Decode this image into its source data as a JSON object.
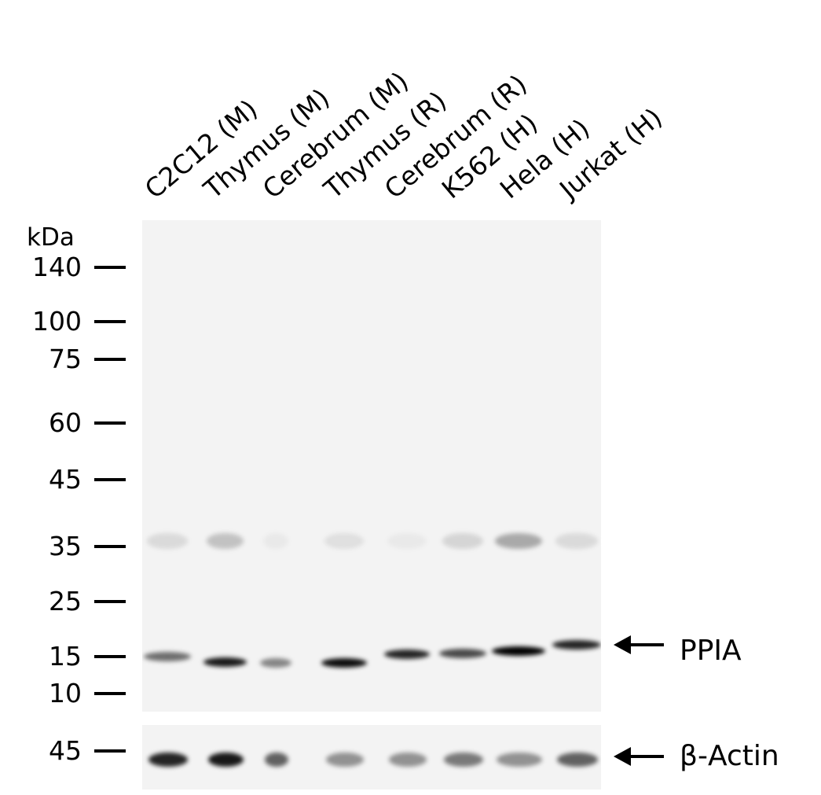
{
  "lanes": [
    "C2C12 (M)",
    "Thymus (M)",
    "Cerebrum (M)",
    "Thymus (R)",
    "Cerebrum (R)",
    "K562 (H)",
    "Hela (H)",
    "Jurkat (H)"
  ],
  "mw_unit": "kDa",
  "mw_markers": [
    "140",
    "100",
    "75",
    "60",
    "45",
    "35",
    "25",
    "15",
    "10"
  ],
  "actin_marker": "45",
  "targets": {
    "main": "PPIA",
    "loading": "β-Actin"
  },
  "band_intensity": {
    "PPIA": [
      0.55,
      0.9,
      0.45,
      0.95,
      0.85,
      0.7,
      1.0,
      0.85
    ],
    "band_35kDa": [
      0.1,
      0.2,
      0.04,
      0.08,
      0.04,
      0.12,
      0.3,
      0.1
    ],
    "beta_actin": [
      0.85,
      0.9,
      0.6,
      0.4,
      0.4,
      0.5,
      0.4,
      0.6
    ]
  }
}
